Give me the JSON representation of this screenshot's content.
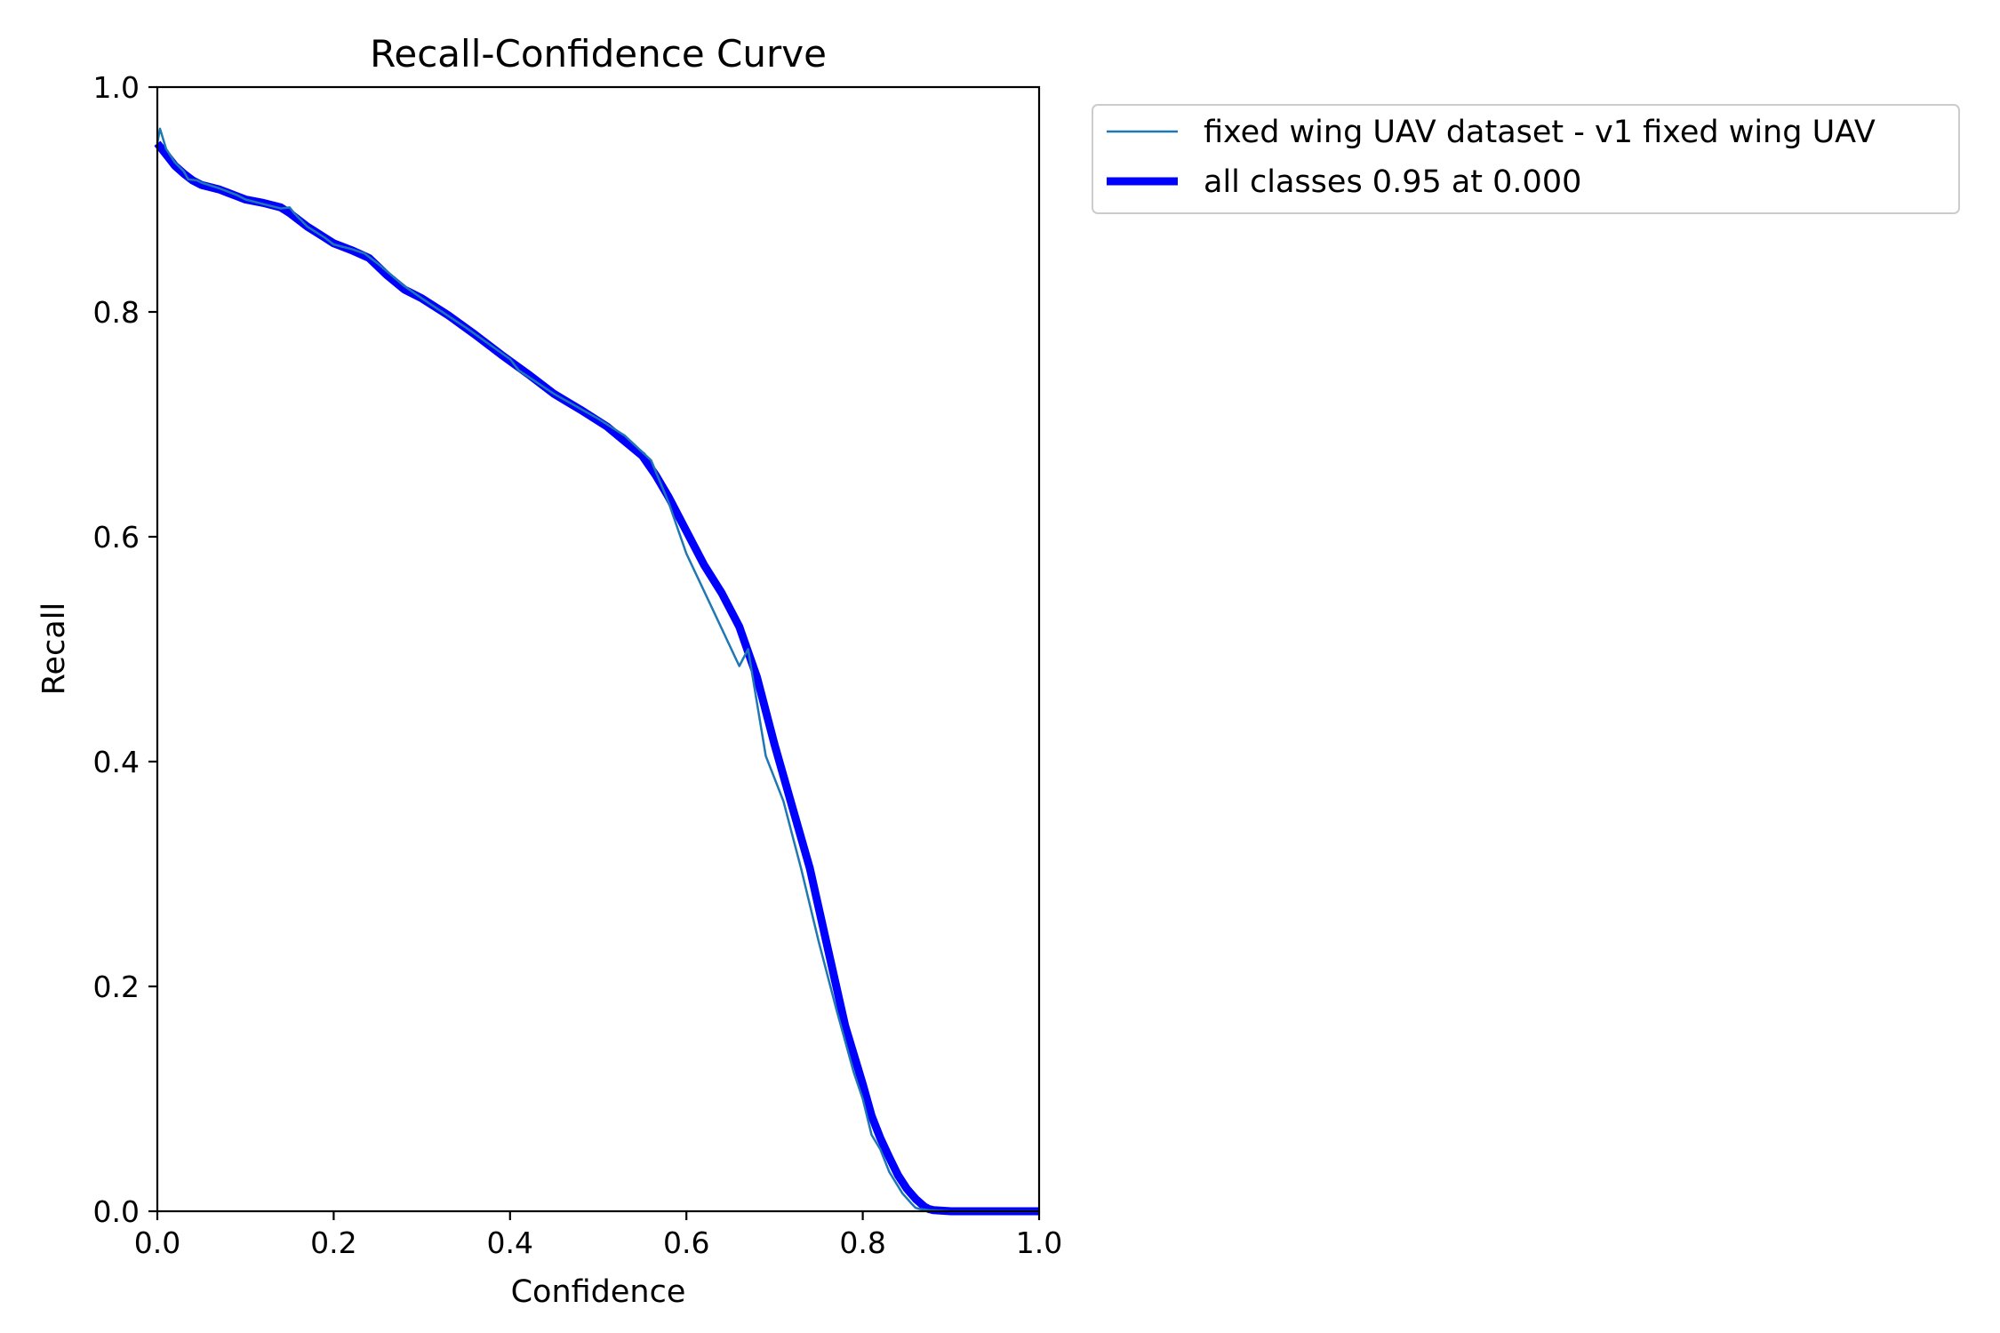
{
  "chart_data": {
    "type": "line",
    "title": "Recall-Confidence Curve",
    "xlabel": "Confidence",
    "ylabel": "Recall",
    "xlim": [
      0.0,
      1.0
    ],
    "ylim": [
      0.0,
      1.0
    ],
    "xticks": [
      "0.0",
      "0.2",
      "0.4",
      "0.6",
      "0.8",
      "1.0"
    ],
    "yticks": [
      "0.0",
      "0.2",
      "0.4",
      "0.6",
      "0.8",
      "1.0"
    ],
    "grid": false,
    "legend_position": "outside-right-top",
    "series": [
      {
        "name": "fixed wing UAV dataset - v1 fixed wing UAV",
        "color": "#1f77b4",
        "style": "thin",
        "x": [
          0.0,
          0.003,
          0.01,
          0.02,
          0.03,
          0.035,
          0.045,
          0.05,
          0.07,
          0.09,
          0.1,
          0.12,
          0.14,
          0.15,
          0.155,
          0.17,
          0.19,
          0.2,
          0.22,
          0.235,
          0.25,
          0.28,
          0.3,
          0.35,
          0.4,
          0.41,
          0.45,
          0.5,
          0.53,
          0.56,
          0.58,
          0.6,
          0.63,
          0.66,
          0.67,
          0.69,
          0.71,
          0.72,
          0.73,
          0.75,
          0.77,
          0.79,
          0.8,
          0.81,
          0.82,
          0.83,
          0.845,
          0.855,
          0.86,
          0.865,
          0.875,
          0.9,
          0.95,
          1.0
        ],
        "y": [
          0.95,
          0.963,
          0.945,
          0.933,
          0.925,
          0.918,
          0.917,
          0.915,
          0.91,
          0.904,
          0.9,
          0.896,
          0.892,
          0.893,
          0.888,
          0.876,
          0.866,
          0.86,
          0.856,
          0.852,
          0.843,
          0.823,
          0.812,
          0.786,
          0.758,
          0.748,
          0.727,
          0.705,
          0.69,
          0.668,
          0.63,
          0.585,
          0.535,
          0.485,
          0.5,
          0.405,
          0.365,
          0.335,
          0.305,
          0.24,
          0.18,
          0.123,
          0.1,
          0.068,
          0.055,
          0.035,
          0.016,
          0.007,
          0.003,
          0.002,
          0.001,
          0.0,
          0.0,
          0.0
        ]
      },
      {
        "name": "all classes 0.95 at 0.000",
        "color": "#0000ff",
        "style": "thick",
        "x": [
          0.0,
          0.01,
          0.02,
          0.03,
          0.04,
          0.05,
          0.07,
          0.09,
          0.1,
          0.12,
          0.14,
          0.15,
          0.17,
          0.19,
          0.2,
          0.22,
          0.24,
          0.26,
          0.28,
          0.3,
          0.33,
          0.36,
          0.39,
          0.42,
          0.45,
          0.48,
          0.51,
          0.53,
          0.55,
          0.565,
          0.58,
          0.6,
          0.62,
          0.64,
          0.66,
          0.68,
          0.7,
          0.72,
          0.74,
          0.76,
          0.78,
          0.8,
          0.81,
          0.82,
          0.83,
          0.84,
          0.85,
          0.86,
          0.87,
          0.875,
          0.88,
          0.9,
          0.95,
          1.0
        ],
        "y": [
          0.95,
          0.94,
          0.93,
          0.923,
          0.917,
          0.913,
          0.909,
          0.903,
          0.9,
          0.897,
          0.893,
          0.888,
          0.876,
          0.866,
          0.861,
          0.855,
          0.848,
          0.833,
          0.82,
          0.812,
          0.797,
          0.78,
          0.762,
          0.745,
          0.727,
          0.713,
          0.698,
          0.685,
          0.672,
          0.655,
          0.635,
          0.605,
          0.575,
          0.55,
          0.52,
          0.475,
          0.415,
          0.36,
          0.305,
          0.235,
          0.165,
          0.113,
          0.085,
          0.065,
          0.048,
          0.032,
          0.02,
          0.011,
          0.004,
          0.002,
          0.001,
          0.0,
          0.0,
          0.0
        ]
      }
    ]
  }
}
